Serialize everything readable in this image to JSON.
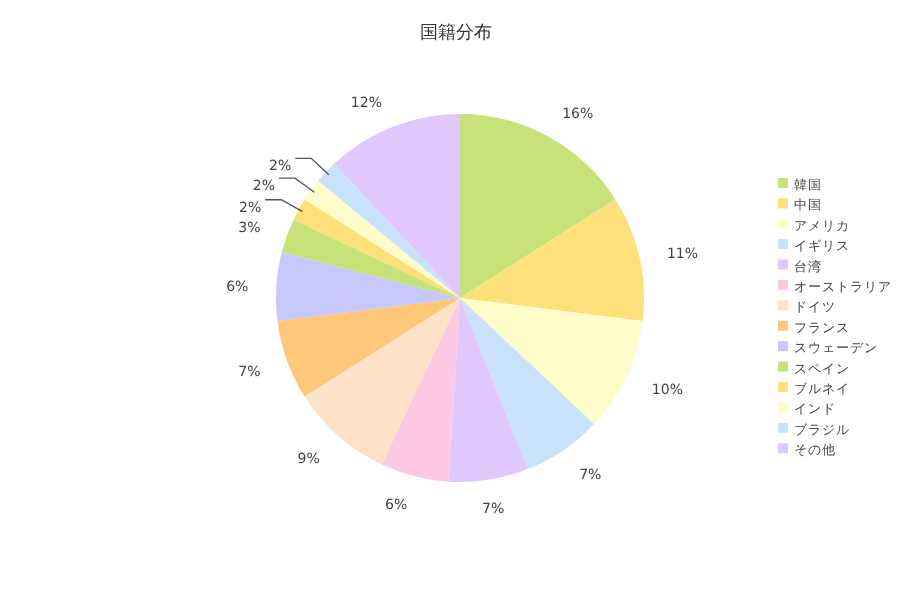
{
  "chart_data": {
    "type": "pie",
    "title": "国籍分布",
    "categories": [
      "韓国",
      "中国",
      "アメリカ",
      "イギリス",
      "台湾",
      "オーストラリア",
      "ドイツ",
      "フランス",
      "スウェーデン",
      "スペイン",
      "ブルネイ",
      "インド",
      "ブラジル",
      "その他"
    ],
    "values": [
      16,
      11,
      10,
      7,
      7,
      6,
      9,
      7,
      6,
      3,
      2,
      2,
      2,
      12
    ],
    "value_labels": [
      "16%",
      "11%",
      "10%",
      "7%",
      "7%",
      "6%",
      "9%",
      "7%",
      "6%",
      "3%",
      "2%",
      "2%",
      "2%",
      "12%"
    ],
    "colors": [
      "#c8e27a",
      "#fde07a",
      "#fefcc8",
      "#c8e2fc",
      "#e0c8fc",
      "#fcc8e2",
      "#fde2c8",
      "#fdc87a",
      "#c8c8fc",
      "#c8e27a",
      "#fde07a",
      "#fefcc8",
      "#c8e2fc",
      "#e0c8fc"
    ],
    "legend": "right"
  }
}
